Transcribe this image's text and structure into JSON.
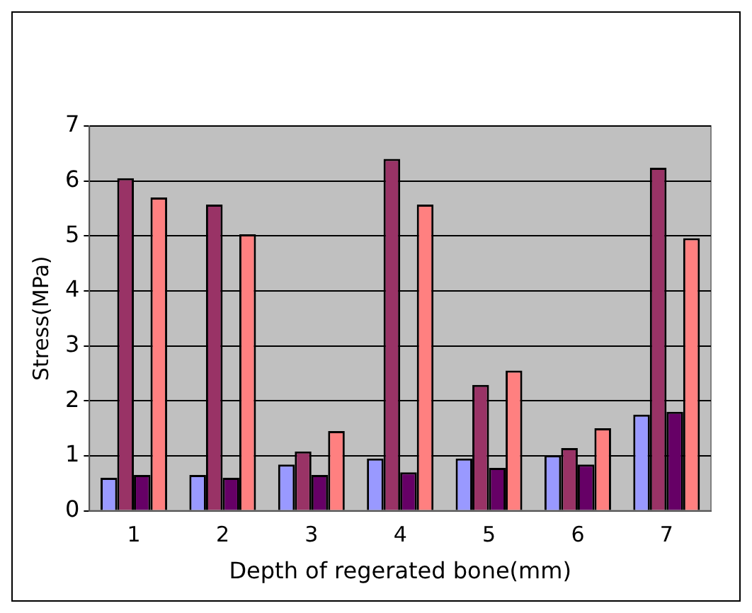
{
  "chart_data": {
    "type": "bar",
    "xlabel": "Depth of regerated bone(mm)",
    "ylabel": "Stress(MPa)",
    "categories": [
      "1",
      "2",
      "3",
      "4",
      "5",
      "6",
      "7"
    ],
    "series": [
      {
        "color": "#9999ff",
        "values": [
          0.6,
          0.65,
          0.84,
          0.95,
          0.95,
          1.01,
          1.75
        ]
      },
      {
        "color": "#993366",
        "values": [
          6.05,
          5.57,
          1.08,
          6.4,
          2.29,
          1.14,
          6.24
        ]
      },
      {
        "color": "#660066",
        "values": [
          0.65,
          0.6,
          0.65,
          0.7,
          0.78,
          0.84,
          1.8
        ]
      },
      {
        "color": "#ff8080",
        "values": [
          5.7,
          5.03,
          1.45,
          5.57,
          2.55,
          1.5,
          4.96
        ]
      }
    ],
    "ylim": [
      0,
      7
    ],
    "yticks": [
      0,
      1,
      2,
      3,
      4,
      5,
      6,
      7
    ],
    "grid": "y",
    "legend": false
  }
}
